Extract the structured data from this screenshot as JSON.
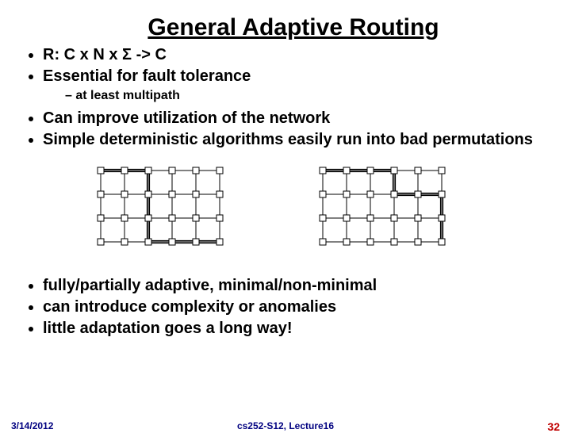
{
  "title": "General Adaptive Routing",
  "bullets": {
    "b1": "R: C x N x Σ -> C",
    "b2": "Essential for fault tolerance",
    "b2_sub1": "at least multipath",
    "b3": "Can improve utilization of the network",
    "b4": "Simple deterministic algorithms easily run into bad permutations",
    "b5": "fully/partially adaptive, minimal/non-minimal",
    "b6": "can introduce complexity or anomalies",
    "b7": "little adaptation goes a long way!"
  },
  "footer": {
    "date": "3/14/2012",
    "course": "cs252-S12, Lecture16",
    "slide_num": "32"
  },
  "diagram": {
    "rows": 4,
    "cols": 6,
    "cell": 30,
    "node_size": 8,
    "colors": {
      "node_stroke": "#000000",
      "node_fill": "#ffffff",
      "grid_line": "#000000",
      "path_line": "#000000",
      "bg": "#ffffff"
    },
    "left_path": [
      [
        5,
        3
      ],
      [
        2,
        3
      ],
      [
        2,
        0
      ],
      [
        0,
        0
      ]
    ],
    "right_path": [
      [
        5,
        3
      ],
      [
        5,
        1
      ],
      [
        3,
        1
      ],
      [
        3,
        0
      ],
      [
        0,
        0
      ]
    ]
  }
}
